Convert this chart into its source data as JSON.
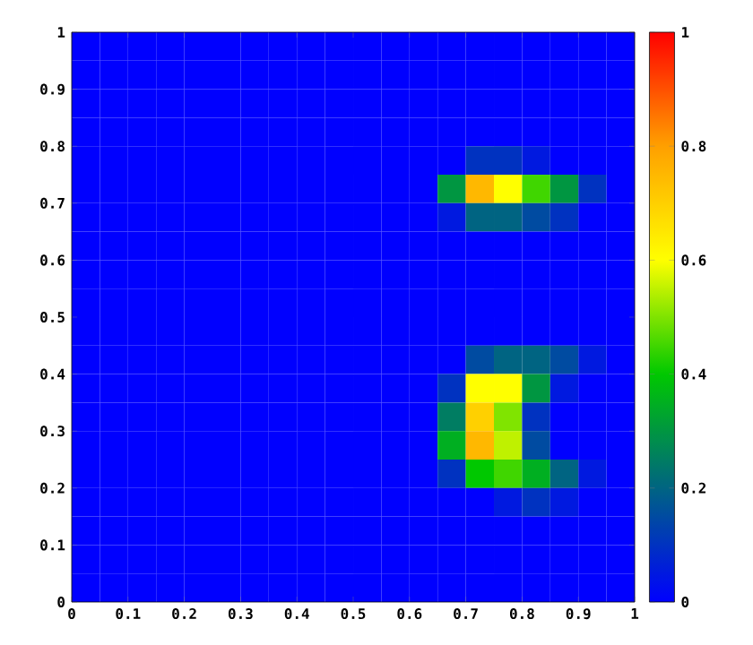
{
  "chart_data": {
    "type": "heatmap",
    "x": [
      0.025,
      0.075,
      0.125,
      0.175,
      0.225,
      0.275,
      0.325,
      0.375,
      0.425,
      0.475,
      0.525,
      0.575,
      0.625,
      0.675,
      0.725,
      0.775,
      0.825,
      0.875,
      0.925,
      0.975
    ],
    "y": [
      0.975,
      0.925,
      0.875,
      0.825,
      0.775,
      0.725,
      0.675,
      0.625,
      0.575,
      0.525,
      0.475,
      0.425,
      0.375,
      0.325,
      0.275,
      0.225,
      0.175,
      0.125,
      0.075,
      0.025
    ],
    "xlim": [
      0,
      1
    ],
    "ylim": [
      0,
      1
    ],
    "xticks": [
      0,
      0.1,
      0.2,
      0.3,
      0.4,
      0.5,
      0.6,
      0.7,
      0.8,
      0.9,
      1
    ],
    "yticks": [
      0,
      0.1,
      0.2,
      0.3,
      0.4,
      0.5,
      0.6,
      0.7,
      0.8,
      0.9,
      1
    ],
    "clim": [
      0,
      1
    ],
    "cticks": [
      0,
      0.2,
      0.4,
      0.6,
      0.8,
      1
    ],
    "cells": [
      [
        0,
        0,
        0,
        0,
        0,
        0,
        0,
        0,
        0,
        0,
        0,
        0,
        0,
        0,
        0,
        0,
        0,
        0,
        0,
        0
      ],
      [
        0,
        0,
        0,
        0,
        0,
        0,
        0,
        0,
        0,
        0,
        0,
        0,
        0,
        0,
        0,
        0,
        0,
        0,
        0,
        0
      ],
      [
        0,
        0,
        0,
        0,
        0,
        0,
        0,
        0,
        0,
        0,
        0,
        0,
        0,
        0,
        0,
        0,
        0,
        0,
        0,
        0
      ],
      [
        0,
        0,
        0,
        0,
        0,
        0,
        0,
        0,
        0,
        0,
        0,
        0,
        0,
        0,
        0,
        0,
        0,
        0,
        0,
        0
      ],
      [
        0,
        0,
        0,
        0,
        0,
        0,
        0,
        0,
        0,
        0,
        0,
        0,
        0,
        0,
        0.1,
        0.1,
        0.05,
        0,
        0,
        0
      ],
      [
        0,
        0,
        0,
        0,
        0,
        0,
        0,
        0,
        0,
        0,
        0,
        0,
        0,
        0.3,
        0.75,
        0.6,
        0.45,
        0.3,
        0.1,
        0
      ],
      [
        0,
        0,
        0,
        0,
        0,
        0,
        0,
        0,
        0,
        0,
        0,
        0,
        0,
        0.05,
        0.2,
        0.2,
        0.15,
        0.1,
        0,
        0
      ],
      [
        0,
        0,
        0,
        0,
        0,
        0,
        0,
        0,
        0,
        0,
        0,
        0,
        0,
        0,
        0,
        0,
        0,
        0,
        0,
        0
      ],
      [
        0,
        0,
        0,
        0,
        0,
        0,
        0,
        0,
        0,
        0,
        0,
        0,
        0,
        0,
        0,
        0,
        0,
        0,
        0,
        0
      ],
      [
        0,
        0,
        0,
        0,
        0,
        0,
        0,
        0,
        0,
        0,
        0,
        0,
        0,
        0,
        0,
        0,
        0,
        0,
        0,
        0
      ],
      [
        0,
        0,
        0,
        0,
        0,
        0,
        0,
        0,
        0,
        0,
        0,
        0,
        0,
        0,
        0,
        0,
        0,
        0,
        0,
        0
      ],
      [
        0,
        0,
        0,
        0,
        0,
        0,
        0,
        0,
        0,
        0,
        0,
        0,
        0,
        0,
        0.15,
        0.2,
        0.2,
        0.15,
        0.05,
        0
      ],
      [
        0,
        0,
        0,
        0,
        0,
        0,
        0,
        0,
        0,
        0,
        0,
        0,
        0,
        0.1,
        0.6,
        0.6,
        0.3,
        0.05,
        0,
        0
      ],
      [
        0,
        0,
        0,
        0,
        0,
        0,
        0,
        0,
        0,
        0,
        0,
        0,
        0,
        0.25,
        0.7,
        0.5,
        0.1,
        0,
        0,
        0
      ],
      [
        0,
        0,
        0,
        0,
        0,
        0,
        0,
        0,
        0,
        0,
        0,
        0,
        0,
        0.35,
        0.75,
        0.55,
        0.15,
        0,
        0,
        0
      ],
      [
        0,
        0,
        0,
        0,
        0,
        0,
        0,
        0,
        0,
        0,
        0,
        0,
        0,
        0.1,
        0.4,
        0.45,
        0.35,
        0.2,
        0.05,
        0
      ],
      [
        0,
        0,
        0,
        0,
        0,
        0,
        0,
        0,
        0,
        0,
        0,
        0,
        0,
        0,
        0,
        0.05,
        0.1,
        0.05,
        0,
        0
      ],
      [
        0,
        0,
        0,
        0,
        0,
        0,
        0,
        0,
        0,
        0,
        0,
        0,
        0,
        0,
        0,
        0,
        0,
        0,
        0,
        0
      ],
      [
        0,
        0,
        0,
        0,
        0,
        0,
        0,
        0,
        0,
        0,
        0,
        0,
        0,
        0,
        0,
        0,
        0,
        0,
        0,
        0
      ],
      [
        0,
        0,
        0,
        0,
        0,
        0,
        0,
        0,
        0,
        0,
        0,
        0,
        0,
        0,
        0,
        0,
        0,
        0,
        0,
        0
      ]
    ]
  }
}
